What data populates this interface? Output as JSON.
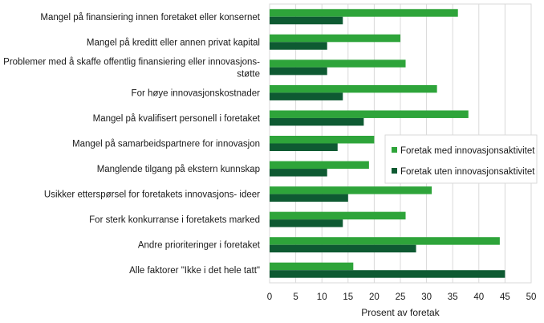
{
  "chart_data": {
    "type": "bar",
    "orientation": "horizontal",
    "categories": [
      [
        "Mangel på finansiering innen foretaket eller konsernet"
      ],
      [
        "Mangel på kreditt eller annen privat kapital"
      ],
      [
        "Problemer med å skaffe offentlig finansiering eller innovasjons-",
        "støtte"
      ],
      [
        "For høye innovasjonskostnader"
      ],
      [
        "Mangel på kvalifisert personell i foretaket"
      ],
      [
        "Mangel på samarbeidspartnere for innovasjon"
      ],
      [
        "Manglende tilgang på ekstern kunnskap"
      ],
      [
        "Usikker etterspørsel for foretakets innovasjons- ideer"
      ],
      [
        "For sterk konkurranse i foretakets marked"
      ],
      [
        "Andre prioriteringer i foretaket"
      ],
      [
        "Alle faktorer \"Ikke i det hele tatt\""
      ]
    ],
    "series": [
      {
        "name": "Foretak med innovasjonsaktivitet",
        "color": "#2ea43a",
        "values": [
          36,
          25,
          26,
          32,
          38,
          20,
          19,
          31,
          26,
          44,
          16
        ]
      },
      {
        "name": "Foretak uten innovasjonsaktivitet",
        "color": "#0e5a32",
        "values": [
          14,
          11,
          11,
          14,
          18,
          13,
          11,
          15,
          14,
          28,
          45
        ]
      }
    ],
    "xlabel": "Prosent av foretak",
    "xlim": [
      0,
      50
    ],
    "xticks": [
      0,
      5,
      10,
      15,
      20,
      25,
      30,
      35,
      40,
      45,
      50
    ],
    "grid": true,
    "legend_position": "right-middle"
  }
}
